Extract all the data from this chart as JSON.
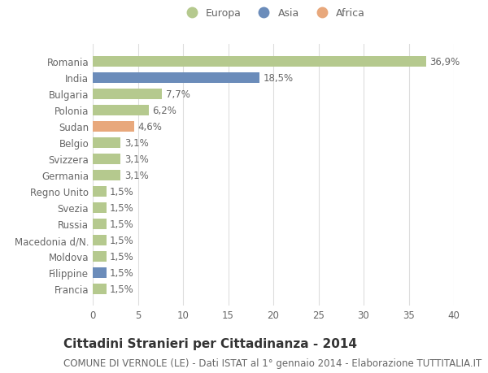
{
  "countries": [
    "Francia",
    "Filippine",
    "Moldova",
    "Macedonia d/N.",
    "Russia",
    "Svezia",
    "Regno Unito",
    "Germania",
    "Svizzera",
    "Belgio",
    "Sudan",
    "Polonia",
    "Bulgaria",
    "India",
    "Romania"
  ],
  "values": [
    1.5,
    1.5,
    1.5,
    1.5,
    1.5,
    1.5,
    1.5,
    3.1,
    3.1,
    3.1,
    4.6,
    6.2,
    7.7,
    18.5,
    36.9
  ],
  "continents": [
    "Europa",
    "Asia",
    "Europa",
    "Europa",
    "Europa",
    "Europa",
    "Europa",
    "Europa",
    "Europa",
    "Europa",
    "Africa",
    "Europa",
    "Europa",
    "Asia",
    "Europa"
  ],
  "bar_colors": [
    "#b5c98e",
    "#6b8cba",
    "#b5c98e",
    "#b5c98e",
    "#b5c98e",
    "#b5c98e",
    "#b5c98e",
    "#b5c98e",
    "#b5c98e",
    "#b5c98e",
    "#e8a87c",
    "#b5c98e",
    "#b5c98e",
    "#6b8cba",
    "#b5c98e"
  ],
  "labels": [
    "1,5%",
    "1,5%",
    "1,5%",
    "1,5%",
    "1,5%",
    "1,5%",
    "1,5%",
    "3,1%",
    "3,1%",
    "3,1%",
    "4,6%",
    "6,2%",
    "7,7%",
    "18,5%",
    "36,9%"
  ],
  "title": "Cittadini Stranieri per Cittadinanza - 2014",
  "subtitle": "COMUNE DI VERNOLE (LE) - Dati ISTAT al 1° gennaio 2014 - Elaborazione TUTTITALIA.IT",
  "xlim": [
    0,
    40
  ],
  "xticks": [
    0,
    5,
    10,
    15,
    20,
    25,
    30,
    35,
    40
  ],
  "legend_labels": [
    "Europa",
    "Asia",
    "Africa"
  ],
  "legend_colors": [
    "#b5c98e",
    "#6b8cba",
    "#e8a87c"
  ],
  "bg_color": "#ffffff",
  "grid_color": "#dddddd",
  "label_fontsize": 8.5,
  "title_fontsize": 11,
  "subtitle_fontsize": 8.5,
  "text_color": "#666666",
  "title_color": "#333333"
}
